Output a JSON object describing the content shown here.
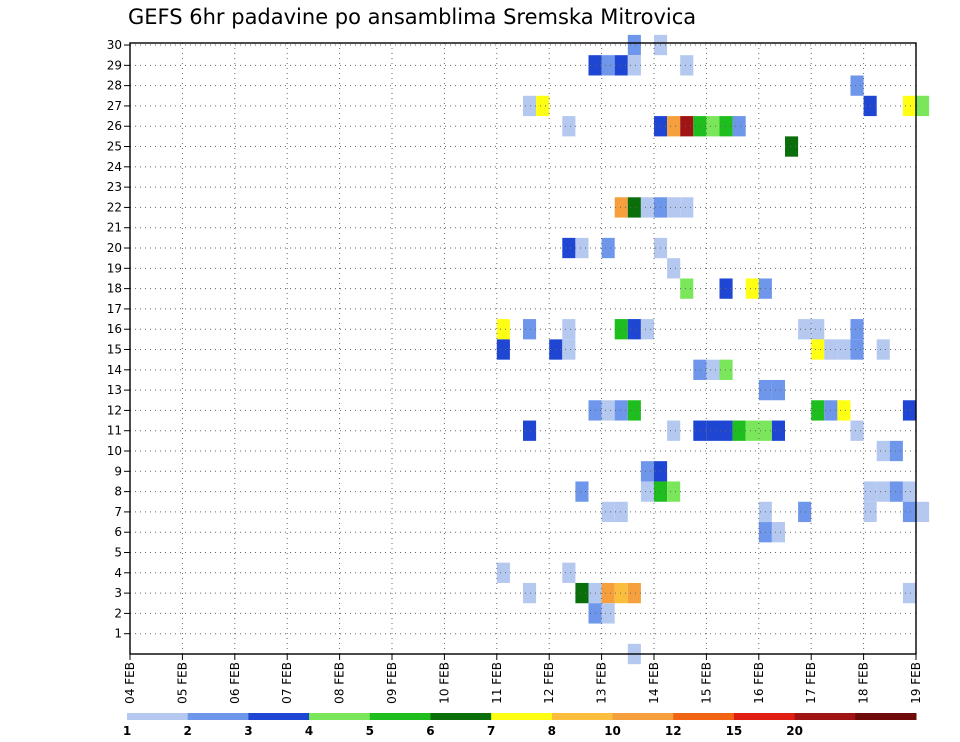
{
  "chart_data": {
    "type": "heatmap",
    "title": "GEFS 6hr padavine po ansamblima Sremska Mitrovica",
    "xlabel": "",
    "ylabel": "",
    "x_ticks": [
      "04 FEB",
      "05 FEB",
      "06 FEB",
      "07 FEB",
      "08 FEB",
      "09 FEB",
      "10 FEB",
      "11 FEB",
      "12 FEB",
      "13 FEB",
      "14 FEB",
      "15 FEB",
      "16 FEB",
      "17 FEB",
      "18 FEB",
      "19 FEB"
    ],
    "x_range": [
      "04 FEB 00Z",
      "19 FEB 00Z"
    ],
    "x_step_hours": 6,
    "y_ticks": [
      1,
      2,
      3,
      4,
      5,
      6,
      7,
      8,
      9,
      10,
      11,
      12,
      13,
      14,
      15,
      16,
      17,
      18,
      19,
      20,
      21,
      22,
      23,
      24,
      25,
      26,
      27,
      28,
      29,
      30
    ],
    "ylim": [
      0,
      30
    ],
    "grid": true,
    "legend_placement": "bottom",
    "legend": {
      "labels": [
        "1",
        "2",
        "3",
        "4",
        "5",
        "6",
        "7",
        "8",
        "10",
        "12",
        "15",
        "20"
      ],
      "colors": [
        "#b4c8f0",
        "#6e96ea",
        "#1e46d2",
        "#7ae65a",
        "#1ebe1e",
        "#0a6e0a",
        "#ffff14",
        "#fabe3c",
        "#f5a03c",
        "#f06414",
        "#e11e14",
        "#a01414",
        "#6e0a0a"
      ]
    },
    "cells": [
      {
        "member": 30,
        "x": "13 FEB 12Z",
        "class": 2
      },
      {
        "member": 30,
        "x": "14 FEB 00Z",
        "class": 1
      },
      {
        "member": 29,
        "x": "12 FEB 18Z",
        "class": 3
      },
      {
        "member": 29,
        "x": "13 FEB 00Z",
        "class": 2
      },
      {
        "member": 29,
        "x": "13 FEB 06Z",
        "class": 3
      },
      {
        "member": 29,
        "x": "13 FEB 12Z",
        "class": 1
      },
      {
        "member": 29,
        "x": "14 FEB 12Z",
        "class": 1
      },
      {
        "member": 28,
        "x": "17 FEB 18Z",
        "class": 2
      },
      {
        "member": 27,
        "x": "11 FEB 12Z",
        "class": 1
      },
      {
        "member": 27,
        "x": "11 FEB 18Z",
        "class": 7
      },
      {
        "member": 27,
        "x": "18 FEB 00Z",
        "class": 3
      },
      {
        "member": 27,
        "x": "18 FEB 18Z",
        "class": 7
      },
      {
        "member": 27,
        "x": "19 FEB 00Z",
        "class": 4
      },
      {
        "member": 26,
        "x": "12 FEB 06Z",
        "class": 1
      },
      {
        "member": 26,
        "x": "14 FEB 00Z",
        "class": 3
      },
      {
        "member": 26,
        "x": "14 FEB 06Z",
        "class": 9
      },
      {
        "member": 26,
        "x": "14 FEB 12Z",
        "class": 12
      },
      {
        "member": 26,
        "x": "14 FEB 18Z",
        "class": 5
      },
      {
        "member": 26,
        "x": "15 FEB 00Z",
        "class": 4
      },
      {
        "member": 26,
        "x": "15 FEB 06Z",
        "class": 5
      },
      {
        "member": 26,
        "x": "15 FEB 12Z",
        "class": 2
      },
      {
        "member": 25,
        "x": "16 FEB 12Z",
        "class": 6
      },
      {
        "member": 22,
        "x": "13 FEB 06Z",
        "class": 9
      },
      {
        "member": 22,
        "x": "13 FEB 12Z",
        "class": 6
      },
      {
        "member": 22,
        "x": "13 FEB 18Z",
        "class": 1
      },
      {
        "member": 22,
        "x": "14 FEB 00Z",
        "class": 2
      },
      {
        "member": 22,
        "x": "14 FEB 06Z",
        "class": 1
      },
      {
        "member": 22,
        "x": "14 FEB 12Z",
        "class": 1
      },
      {
        "member": 20,
        "x": "12 FEB 06Z",
        "class": 3
      },
      {
        "member": 20,
        "x": "12 FEB 12Z",
        "class": 1
      },
      {
        "member": 20,
        "x": "13 FEB 00Z",
        "class": 2
      },
      {
        "member": 20,
        "x": "14 FEB 00Z",
        "class": 1
      },
      {
        "member": 19,
        "x": "14 FEB 06Z",
        "class": 1
      },
      {
        "member": 18,
        "x": "14 FEB 12Z",
        "class": 4
      },
      {
        "member": 18,
        "x": "15 FEB 06Z",
        "class": 3
      },
      {
        "member": 18,
        "x": "15 FEB 18Z",
        "class": 7
      },
      {
        "member": 18,
        "x": "16 FEB 00Z",
        "class": 2
      },
      {
        "member": 16,
        "x": "11 FEB 00Z",
        "class": 7
      },
      {
        "member": 16,
        "x": "11 FEB 12Z",
        "class": 2
      },
      {
        "member": 16,
        "x": "12 FEB 06Z",
        "class": 1
      },
      {
        "member": 16,
        "x": "13 FEB 06Z",
        "class": 5
      },
      {
        "member": 16,
        "x": "13 FEB 12Z",
        "class": 3
      },
      {
        "member": 16,
        "x": "13 FEB 18Z",
        "class": 1
      },
      {
        "member": 16,
        "x": "16 FEB 18Z",
        "class": 1
      },
      {
        "member": 16,
        "x": "17 FEB 00Z",
        "class": 1
      },
      {
        "member": 16,
        "x": "17 FEB 18Z",
        "class": 2
      },
      {
        "member": 15,
        "x": "11 FEB 00Z",
        "class": 3
      },
      {
        "member": 15,
        "x": "12 FEB 00Z",
        "class": 3
      },
      {
        "member": 15,
        "x": "12 FEB 06Z",
        "class": 1
      },
      {
        "member": 15,
        "x": "17 FEB 00Z",
        "class": 7
      },
      {
        "member": 15,
        "x": "17 FEB 06Z",
        "class": 1
      },
      {
        "member": 15,
        "x": "17 FEB 12Z",
        "class": 1
      },
      {
        "member": 15,
        "x": "17 FEB 18Z",
        "class": 2
      },
      {
        "member": 15,
        "x": "18 FEB 06Z",
        "class": 1
      },
      {
        "member": 14,
        "x": "14 FEB 18Z",
        "class": 2
      },
      {
        "member": 14,
        "x": "15 FEB 00Z",
        "class": 1
      },
      {
        "member": 14,
        "x": "15 FEB 06Z",
        "class": 4
      },
      {
        "member": 13,
        "x": "16 FEB 00Z",
        "class": 2
      },
      {
        "member": 13,
        "x": "16 FEB 06Z",
        "class": 2
      },
      {
        "member": 12,
        "x": "12 FEB 18Z",
        "class": 2
      },
      {
        "member": 12,
        "x": "13 FEB 00Z",
        "class": 1
      },
      {
        "member": 12,
        "x": "13 FEB 06Z",
        "class": 2
      },
      {
        "member": 12,
        "x": "13 FEB 12Z",
        "class": 5
      },
      {
        "member": 12,
        "x": "17 FEB 00Z",
        "class": 5
      },
      {
        "member": 12,
        "x": "17 FEB 06Z",
        "class": 2
      },
      {
        "member": 12,
        "x": "17 FEB 12Z",
        "class": 7
      },
      {
        "member": 12,
        "x": "18 FEB 18Z",
        "class": 3
      },
      {
        "member": 11,
        "x": "11 FEB 12Z",
        "class": 3
      },
      {
        "member": 11,
        "x": "14 FEB 06Z",
        "class": 1
      },
      {
        "member": 11,
        "x": "14 FEB 18Z",
        "class": 3
      },
      {
        "member": 11,
        "x": "15 FEB 00Z",
        "class": 3
      },
      {
        "member": 11,
        "x": "15 FEB 06Z",
        "class": 3
      },
      {
        "member": 11,
        "x": "15 FEB 12Z",
        "class": 5
      },
      {
        "member": 11,
        "x": "15 FEB 18Z",
        "class": 4
      },
      {
        "member": 11,
        "x": "16 FEB 00Z",
        "class": 4
      },
      {
        "member": 11,
        "x": "16 FEB 06Z",
        "class": 3
      },
      {
        "member": 11,
        "x": "17 FEB 18Z",
        "class": 1
      },
      {
        "member": 10,
        "x": "18 FEB 06Z",
        "class": 1
      },
      {
        "member": 10,
        "x": "18 FEB 12Z",
        "class": 2
      },
      {
        "member": 9,
        "x": "13 FEB 18Z",
        "class": 2
      },
      {
        "member": 9,
        "x": "14 FEB 00Z",
        "class": 3
      },
      {
        "member": 8,
        "x": "12 FEB 12Z",
        "class": 2
      },
      {
        "member": 8,
        "x": "13 FEB 18Z",
        "class": 1
      },
      {
        "member": 8,
        "x": "14 FEB 00Z",
        "class": 5
      },
      {
        "member": 8,
        "x": "14 FEB 06Z",
        "class": 4
      },
      {
        "member": 8,
        "x": "18 FEB 00Z",
        "class": 1
      },
      {
        "member": 8,
        "x": "18 FEB 06Z",
        "class": 1
      },
      {
        "member": 8,
        "x": "18 FEB 12Z",
        "class": 2
      },
      {
        "member": 8,
        "x": "18 FEB 18Z",
        "class": 1
      },
      {
        "member": 7,
        "x": "13 FEB 00Z",
        "class": 1
      },
      {
        "member": 7,
        "x": "13 FEB 06Z",
        "class": 1
      },
      {
        "member": 7,
        "x": "16 FEB 00Z",
        "class": 1
      },
      {
        "member": 7,
        "x": "16 FEB 18Z",
        "class": 2
      },
      {
        "member": 7,
        "x": "18 FEB 00Z",
        "class": 1
      },
      {
        "member": 7,
        "x": "18 FEB 18Z",
        "class": 2
      },
      {
        "member": 7,
        "x": "19 FEB 00Z",
        "class": 1
      },
      {
        "member": 6,
        "x": "16 FEB 00Z",
        "class": 2
      },
      {
        "member": 6,
        "x": "16 FEB 06Z",
        "class": 1
      },
      {
        "member": 4,
        "x": "11 FEB 00Z",
        "class": 1
      },
      {
        "member": 4,
        "x": "12 FEB 06Z",
        "class": 1
      },
      {
        "member": 3,
        "x": "11 FEB 12Z",
        "class": 1
      },
      {
        "member": 3,
        "x": "12 FEB 12Z",
        "class": 6
      },
      {
        "member": 3,
        "x": "12 FEB 18Z",
        "class": 1
      },
      {
        "member": 3,
        "x": "13 FEB 00Z",
        "class": 9
      },
      {
        "member": 3,
        "x": "13 FEB 06Z",
        "class": 8
      },
      {
        "member": 3,
        "x": "13 FEB 12Z",
        "class": 9
      },
      {
        "member": 3,
        "x": "18 FEB 18Z",
        "class": 1
      },
      {
        "member": 2,
        "x": "12 FEB 18Z",
        "class": 2
      },
      {
        "member": 2,
        "x": "13 FEB 00Z",
        "class": 1
      },
      {
        "member": 0,
        "x": "13 FEB 12Z",
        "class": 1
      }
    ]
  }
}
